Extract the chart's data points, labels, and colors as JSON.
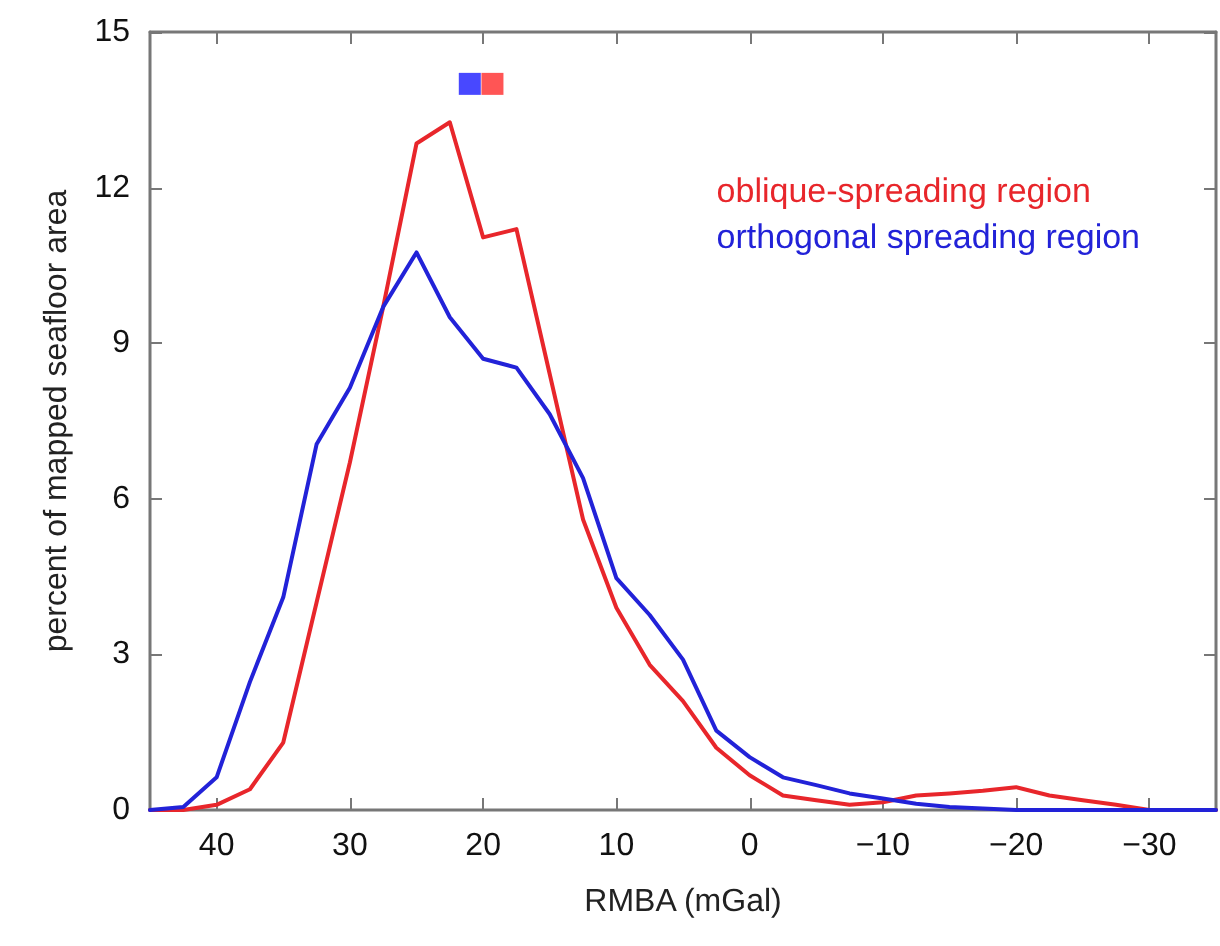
{
  "chart_data": {
    "type": "line",
    "xlabel": "RMBA (mGal)",
    "ylabel": "percent of mapped seafloor area",
    "x": [
      45,
      42.5,
      40,
      37.5,
      35,
      32.5,
      30,
      27.5,
      25,
      22.5,
      20,
      17.5,
      15,
      12.5,
      10,
      7.5,
      5,
      2.5,
      0,
      -2.5,
      -5,
      -7.5,
      -10,
      -12.5,
      -15,
      -17.5,
      -20,
      -22.5,
      -25,
      -27.5,
      -30,
      -32.5,
      -35
    ],
    "series": [
      {
        "name": "oblique-spreading region",
        "color": "#e8262b",
        "values": [
          0,
          0,
          0.1,
          0.4,
          1.3,
          4.0,
          6.7,
          9.7,
          12.85,
          13.26,
          11.04,
          11.2,
          8.4,
          5.6,
          3.9,
          2.8,
          2.1,
          1.2,
          0.67,
          0.28,
          0.19,
          0.1,
          0.15,
          0.28,
          0.32,
          0.37,
          0.44,
          0.28,
          0.19,
          0.1,
          0,
          0,
          0
        ]
      },
      {
        "name": "orthogonal spreading region",
        "color": "#2222d8",
        "values": [
          0,
          0.06,
          0.63,
          2.47,
          4.1,
          7.05,
          8.14,
          9.7,
          10.75,
          9.5,
          8.7,
          8.53,
          7.63,
          6.4,
          4.47,
          3.76,
          2.9,
          1.53,
          1.02,
          0.63,
          0.48,
          0.32,
          0.22,
          0.12,
          0.06,
          0.03,
          0,
          0,
          0,
          0,
          0,
          0,
          0
        ]
      },
      {
        "type": "scatter",
        "marker": "square",
        "color": "#1a1aff",
        "x": [
          21.0
        ],
        "values": [
          14.0
        ]
      },
      {
        "type": "scatter",
        "marker": "square",
        "color": "#ff2a2a",
        "x": [
          19.3
        ],
        "values": [
          14.0
        ]
      }
    ],
    "xlim": [
      45,
      -35
    ],
    "xticks": [
      40,
      30,
      20,
      10,
      0,
      -10,
      -20,
      -30
    ],
    "ylim": [
      0,
      15
    ],
    "yticks": [
      0,
      3,
      6,
      9,
      12,
      15
    ],
    "legend": "top right",
    "grid": false,
    "marker": "none",
    "line_style": "solid"
  }
}
